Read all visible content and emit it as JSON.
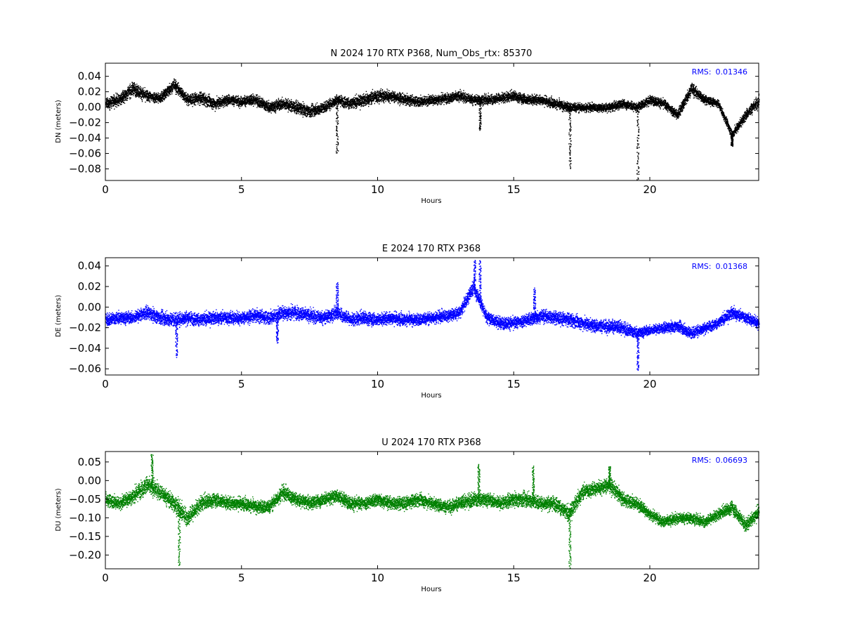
{
  "chart_data": [
    {
      "type": "scatter",
      "title": "N 2024 170 RTX  P368, Num_Obs_rtx: 85370",
      "xlabel": "Hours",
      "ylabel": "DN (meters)",
      "xlim": [
        0,
        24
      ],
      "ylim": [
        -0.095,
        0.057
      ],
      "xticks": [
        0,
        5,
        10,
        15,
        20
      ],
      "yticks": [
        -0.08,
        -0.06,
        -0.04,
        -0.02,
        0.0,
        0.02,
        0.04
      ],
      "ytick_labels": [
        "−0.08",
        "−0.06",
        "−0.04",
        "−0.02",
        "0.00",
        "0.02",
        "0.04"
      ],
      "color": "#000000",
      "annotation": {
        "label": "RMS:",
        "value": "0.01346",
        "color": "#0000ff",
        "placement": "top-right"
      },
      "grid": false,
      "series": [
        {
          "x": [
            0,
            0.5,
            1.0,
            1.5,
            2.0,
            2.5,
            3.0,
            3.5,
            4.0,
            4.5,
            5.0,
            5.5,
            6.0,
            6.5,
            7.0,
            7.5,
            8.0,
            8.5,
            9.0,
            9.5,
            10.0,
            10.5,
            11.0,
            11.5,
            12.0,
            12.5,
            13.0,
            13.5,
            14.0,
            14.5,
            15.0,
            15.5,
            16.0,
            16.5,
            17.0,
            17.5,
            18.0,
            18.5,
            19.0,
            19.5,
            20.0,
            20.5,
            21.0,
            21.5,
            22.0,
            22.5,
            23.0,
            23.5,
            24.0
          ],
          "y": [
            0.005,
            0.01,
            0.025,
            0.015,
            0.012,
            0.03,
            0.01,
            0.012,
            0.005,
            0.01,
            0.008,
            0.01,
            0.0,
            0.005,
            0.0,
            -0.005,
            0.0,
            0.01,
            0.005,
            0.01,
            0.015,
            0.015,
            0.01,
            0.008,
            0.01,
            0.012,
            0.015,
            0.01,
            0.01,
            0.012,
            0.015,
            0.01,
            0.01,
            0.005,
            0.0,
            0.0,
            0.0,
            0.0,
            0.005,
            0.0,
            0.01,
            0.005,
            -0.01,
            0.025,
            0.01,
            0.005,
            -0.035,
            -0.01,
            0.01
          ],
          "spread": [
            0.012,
            0.013,
            0.015,
            0.012,
            0.012,
            0.014,
            0.012,
            0.014,
            0.013,
            0.012,
            0.011,
            0.012,
            0.012,
            0.013,
            0.013,
            0.013,
            0.012,
            0.012,
            0.013,
            0.013,
            0.015,
            0.012,
            0.011,
            0.011,
            0.011,
            0.011,
            0.011,
            0.011,
            0.011,
            0.011,
            0.011,
            0.011,
            0.011,
            0.011,
            0.011,
            0.01,
            0.009,
            0.01,
            0.01,
            0.01,
            0.01,
            0.01,
            0.012,
            0.014,
            0.01,
            0.008,
            0.01,
            0.012,
            0.014
          ],
          "spikes": [
            {
              "x": 8.5,
              "y": -0.06
            },
            {
              "x": 13.75,
              "y": -0.03
            },
            {
              "x": 17.05,
              "y": -0.08
            },
            {
              "x": 19.55,
              "y": -0.095
            },
            {
              "x": 23.0,
              "y": -0.05
            }
          ]
        }
      ]
    },
    {
      "type": "scatter",
      "title": "E 2024 170 RTX  P368",
      "xlabel": "Hours",
      "ylabel": "DE (meters)",
      "xlim": [
        0,
        24
      ],
      "ylim": [
        -0.066,
        0.048
      ],
      "xticks": [
        0,
        5,
        10,
        15,
        20
      ],
      "yticks": [
        -0.06,
        -0.04,
        -0.02,
        0.0,
        0.02,
        0.04
      ],
      "ytick_labels": [
        "−0.06",
        "−0.04",
        "−0.02",
        "0.00",
        "0.02",
        "0.04"
      ],
      "color": "#0000ff",
      "annotation": {
        "label": "RMS:",
        "value": "0.01368",
        "color": "#0000ff",
        "placement": "top-right"
      },
      "grid": false,
      "series": [
        {
          "x": [
            0,
            0.5,
            1.0,
            1.5,
            2.0,
            2.5,
            3.0,
            3.5,
            4.0,
            4.5,
            5.0,
            5.5,
            6.0,
            6.5,
            7.0,
            7.5,
            8.0,
            8.5,
            9.0,
            9.5,
            10.0,
            10.5,
            11.0,
            11.5,
            12.0,
            12.5,
            13.0,
            13.5,
            14.0,
            14.5,
            15.0,
            15.5,
            16.0,
            16.5,
            17.0,
            17.5,
            18.0,
            18.5,
            19.0,
            19.5,
            20.0,
            20.5,
            21.0,
            21.5,
            22.0,
            22.5,
            23.0,
            23.5,
            24.0
          ],
          "y": [
            -0.012,
            -0.01,
            -0.01,
            -0.005,
            -0.01,
            -0.012,
            -0.01,
            -0.012,
            -0.01,
            -0.01,
            -0.01,
            -0.008,
            -0.01,
            -0.005,
            -0.005,
            -0.008,
            -0.01,
            -0.005,
            -0.012,
            -0.01,
            -0.012,
            -0.01,
            -0.012,
            -0.012,
            -0.01,
            -0.008,
            -0.005,
            0.02,
            -0.01,
            -0.015,
            -0.015,
            -0.012,
            -0.008,
            -0.01,
            -0.012,
            -0.015,
            -0.018,
            -0.018,
            -0.02,
            -0.025,
            -0.022,
            -0.02,
            -0.018,
            -0.025,
            -0.02,
            -0.015,
            -0.005,
            -0.01,
            -0.015
          ],
          "spread": [
            0.01,
            0.01,
            0.01,
            0.01,
            0.011,
            0.012,
            0.011,
            0.011,
            0.01,
            0.011,
            0.01,
            0.01,
            0.011,
            0.012,
            0.011,
            0.011,
            0.011,
            0.011,
            0.01,
            0.011,
            0.01,
            0.011,
            0.01,
            0.01,
            0.01,
            0.01,
            0.01,
            0.012,
            0.01,
            0.01,
            0.01,
            0.011,
            0.011,
            0.011,
            0.011,
            0.011,
            0.011,
            0.011,
            0.011,
            0.009,
            0.008,
            0.008,
            0.009,
            0.01,
            0.009,
            0.009,
            0.01,
            0.009,
            0.01
          ],
          "spikes": [
            {
              "x": 2.6,
              "y": -0.048
            },
            {
              "x": 6.3,
              "y": -0.035
            },
            {
              "x": 8.5,
              "y": 0.024
            },
            {
              "x": 13.55,
              "y": 0.046
            },
            {
              "x": 13.75,
              "y": 0.046
            },
            {
              "x": 15.75,
              "y": 0.018
            },
            {
              "x": 19.55,
              "y": -0.062
            }
          ]
        }
      ]
    },
    {
      "type": "scatter",
      "title": "U 2024 170 RTX  P368",
      "xlabel": "Hours",
      "ylabel": "DU (meters)",
      "xlim": [
        0,
        24
      ],
      "ylim": [
        -0.237,
        0.078
      ],
      "xticks": [
        0,
        5,
        10,
        15,
        20
      ],
      "yticks": [
        -0.2,
        -0.15,
        -0.1,
        -0.05,
        0.0,
        0.05
      ],
      "ytick_labels": [
        "−0.20",
        "−0.15",
        "−0.10",
        "−0.05",
        "0.00",
        "0.05"
      ],
      "color": "#008000",
      "annotation": {
        "label": "RMS:",
        "value": "0.06693",
        "color": "#0000ff",
        "placement": "top-right"
      },
      "grid": false,
      "series": [
        {
          "x": [
            0,
            0.5,
            1.0,
            1.5,
            2.0,
            2.5,
            3.0,
            3.5,
            4.0,
            4.5,
            5.0,
            5.5,
            6.0,
            6.5,
            7.0,
            7.5,
            8.0,
            8.5,
            9.0,
            9.5,
            10.0,
            10.5,
            11.0,
            11.5,
            12.0,
            12.5,
            13.0,
            13.5,
            14.0,
            14.5,
            15.0,
            15.5,
            16.0,
            16.5,
            17.0,
            17.5,
            18.0,
            18.5,
            19.0,
            19.5,
            20.0,
            20.5,
            21.0,
            21.5,
            22.0,
            22.5,
            23.0,
            23.5,
            24.0
          ],
          "y": [
            -0.05,
            -0.06,
            -0.04,
            -0.01,
            -0.03,
            -0.06,
            -0.1,
            -0.06,
            -0.05,
            -0.06,
            -0.06,
            -0.07,
            -0.07,
            -0.03,
            -0.05,
            -0.06,
            -0.05,
            -0.04,
            -0.06,
            -0.06,
            -0.05,
            -0.06,
            -0.06,
            -0.05,
            -0.06,
            -0.07,
            -0.06,
            -0.05,
            -0.05,
            -0.06,
            -0.05,
            -0.05,
            -0.06,
            -0.06,
            -0.09,
            -0.03,
            -0.02,
            -0.01,
            -0.05,
            -0.06,
            -0.09,
            -0.11,
            -0.1,
            -0.1,
            -0.11,
            -0.09,
            -0.07,
            -0.12,
            -0.08
          ],
          "spread": [
            0.03,
            0.03,
            0.035,
            0.04,
            0.035,
            0.04,
            0.04,
            0.035,
            0.03,
            0.03,
            0.03,
            0.03,
            0.03,
            0.035,
            0.03,
            0.03,
            0.03,
            0.03,
            0.03,
            0.03,
            0.03,
            0.03,
            0.03,
            0.03,
            0.03,
            0.03,
            0.03,
            0.035,
            0.03,
            0.03,
            0.03,
            0.035,
            0.03,
            0.035,
            0.035,
            0.035,
            0.03,
            0.035,
            0.03,
            0.03,
            0.025,
            0.025,
            0.025,
            0.025,
            0.025,
            0.025,
            0.03,
            0.03,
            0.035
          ],
          "spikes": [
            {
              "x": 1.7,
              "y": 0.075
            },
            {
              "x": 2.7,
              "y": -0.23
            },
            {
              "x": 13.7,
              "y": 0.045
            },
            {
              "x": 15.7,
              "y": 0.04
            },
            {
              "x": 17.05,
              "y": -0.235
            },
            {
              "x": 18.5,
              "y": 0.04
            }
          ]
        }
      ]
    }
  ]
}
